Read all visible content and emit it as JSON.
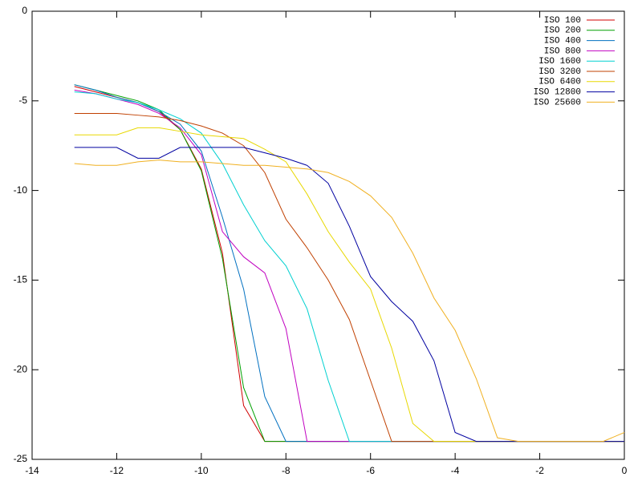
{
  "chart_data": {
    "type": "line",
    "x": [
      -13,
      -12.5,
      -12,
      -11.5,
      -11,
      -10.5,
      -10,
      -9.5,
      -9,
      -8.5,
      -8,
      -7.5,
      -7,
      -6.5,
      -6,
      -5.5,
      -5,
      -4.5,
      -4,
      -3.5,
      -3,
      -2.5,
      -2,
      -1.5,
      -1,
      -0.5,
      0
    ],
    "series": [
      {
        "name": "ISO 100",
        "color": "#d00000",
        "values": [
          -4.2,
          -4.5,
          -4.8,
          -5.1,
          -5.6,
          -6.6,
          -8.8,
          -13.5,
          -22,
          -24,
          -24,
          -24,
          -24,
          -24,
          -24,
          -24,
          -24,
          -24,
          -24,
          -24,
          -24,
          -24,
          -24,
          -24,
          -24,
          -24,
          -24
        ]
      },
      {
        "name": "ISO 200",
        "color": "#00a000",
        "values": [
          -4.1,
          -4.4,
          -4.7,
          -5.0,
          -5.5,
          -6.6,
          -8.9,
          -13.8,
          -21,
          -24,
          -24,
          -24,
          -24,
          -24,
          -24,
          -24,
          -24,
          -24,
          -24,
          -24,
          -24,
          -24,
          -24,
          -24,
          -24,
          -24,
          -24
        ]
      },
      {
        "name": "ISO 400",
        "color": "#0070c0",
        "values": [
          -4.1,
          -4.4,
          -4.8,
          -5.1,
          -5.6,
          -6.3,
          -7.8,
          -11.5,
          -15.5,
          -21.5,
          -24,
          -24,
          -24,
          -24,
          -24,
          -24,
          -24,
          -24,
          -24,
          -24,
          -24,
          -24,
          -24,
          -24,
          -24,
          -24,
          -24
        ]
      },
      {
        "name": "ISO 800",
        "color": "#c000c0",
        "values": [
          -4.4,
          -4.6,
          -4.9,
          -5.2,
          -5.7,
          -6.5,
          -8.0,
          -12.3,
          -13.7,
          -14.6,
          -17.7,
          -24,
          -24,
          -24,
          -24,
          -24,
          -24,
          -24,
          -24,
          -24,
          -24,
          -24,
          -24,
          -24,
          -24,
          -24,
          -24
        ]
      },
      {
        "name": "ISO 1600",
        "color": "#00d0d0",
        "values": [
          -4.5,
          -4.6,
          -4.9,
          -5.1,
          -5.5,
          -6.0,
          -6.8,
          -8.5,
          -10.8,
          -12.8,
          -14.2,
          -16.6,
          -20.6,
          -24,
          -24,
          -24,
          -24,
          -24,
          -24,
          -24,
          -24,
          -24,
          -24,
          -24,
          -24,
          -24,
          -24
        ]
      },
      {
        "name": "ISO 3200",
        "color": "#c04000",
        "values": [
          -5.7,
          -5.7,
          -5.7,
          -5.8,
          -5.9,
          -6.1,
          -6.4,
          -6.8,
          -7.5,
          -9.0,
          -11.6,
          -13.2,
          -15.0,
          -17.2,
          -20.6,
          -24,
          -24,
          -24,
          -24,
          -24,
          -24,
          -24,
          -24,
          -24,
          -24,
          -24,
          -24
        ]
      },
      {
        "name": "ISO 6400",
        "color": "#e8d800",
        "values": [
          -6.9,
          -6.9,
          -6.9,
          -6.5,
          -6.5,
          -6.7,
          -6.9,
          -7.0,
          -7.1,
          -7.7,
          -8.4,
          -10.2,
          -12.3,
          -14.0,
          -15.5,
          -18.8,
          -23,
          -24,
          -24,
          -24,
          -24,
          -24,
          -24,
          -24,
          -24,
          -24,
          -24
        ]
      },
      {
        "name": "ISO 12800",
        "color": "#0000a0",
        "values": [
          -7.6,
          -7.6,
          -7.6,
          -8.2,
          -8.2,
          -7.6,
          -7.6,
          -7.6,
          -7.6,
          -7.9,
          -8.2,
          -8.6,
          -9.6,
          -12.0,
          -14.8,
          -16.2,
          -17.3,
          -19.5,
          -23.5,
          -24,
          -24,
          -24,
          -24,
          -24,
          -24,
          -24,
          -24
        ]
      },
      {
        "name": "ISO 25600",
        "color": "#f0b020",
        "values": [
          -8.5,
          -8.6,
          -8.6,
          -8.4,
          -8.3,
          -8.4,
          -8.4,
          -8.5,
          -8.6,
          -8.6,
          -8.7,
          -8.8,
          -9.0,
          -9.5,
          -10.3,
          -11.5,
          -13.5,
          -16.0,
          -17.8,
          -20.5,
          -23.8,
          -24,
          -24,
          -24,
          -24,
          -24,
          -23.5
        ]
      }
    ],
    "xlim": [
      -14,
      0
    ],
    "xticks": [
      -14,
      -12,
      -10,
      -8,
      -6,
      -4,
      -2,
      0
    ],
    "ylim": [
      -25,
      0
    ],
    "yticks": [
      -25,
      -20,
      -15,
      -10,
      -5,
      0
    ],
    "legend": "top-right"
  }
}
